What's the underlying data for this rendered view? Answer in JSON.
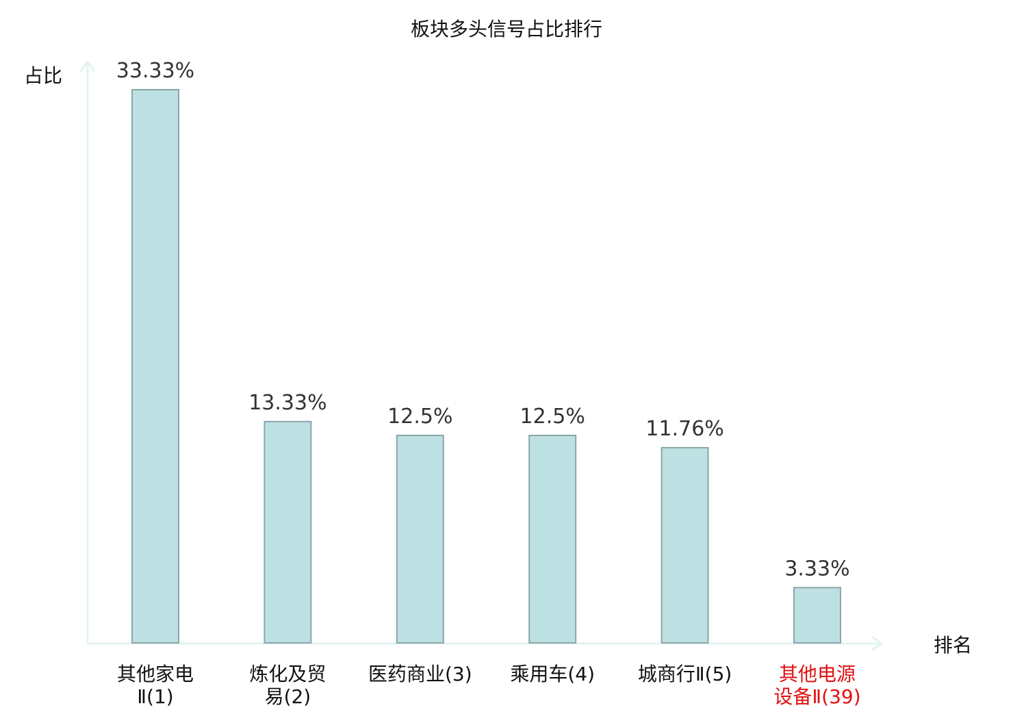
{
  "chart_data": {
    "type": "bar",
    "title": "板块多头信号占比排行",
    "ylabel": "占比",
    "xlabel": "排名",
    "categories": [
      [
        "其他家电",
        "Ⅱ(1)"
      ],
      [
        "炼化及贸",
        "易(2)"
      ],
      [
        "医药商业(3)"
      ],
      [
        "乘用车(4)"
      ],
      [
        "城商行Ⅱ(5)"
      ],
      [
        "其他电源",
        "设备Ⅱ(39)"
      ]
    ],
    "values": [
      33.33,
      13.33,
      12.5,
      12.5,
      11.76,
      3.33
    ],
    "value_labels": [
      "33.33%",
      "13.33%",
      "12.5%",
      "12.5%",
      "11.76%",
      "3.33%"
    ],
    "highlight_index": 5,
    "ylim": [
      0,
      33.33
    ],
    "grid": false,
    "colors": {
      "bar_fill": "#bde0e2",
      "bar_stroke": "#8aa6a8",
      "axis": "#e3f3f0",
      "text": "#333333",
      "title": "#111111",
      "highlight": "#e01010"
    }
  }
}
